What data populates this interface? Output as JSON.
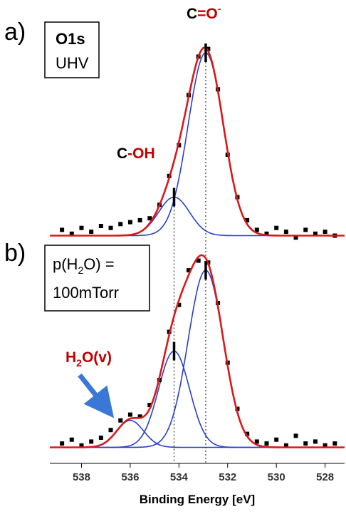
{
  "chart_data": [
    {
      "type": "scatter",
      "panel_label": "a)",
      "box_text": [
        [
          "O1s"
        ],
        [
          "UHV"
        ]
      ],
      "annotations": [
        {
          "parts": [
            "C",
            "=O"
          ],
          "sup": "-"
        },
        {
          "parts": [
            "C",
            "-OH"
          ]
        }
      ],
      "x": [
        538.8,
        538.4,
        538.0,
        537.6,
        537.2,
        536.8,
        536.4,
        536.0,
        535.6,
        535.2,
        534.8,
        534.4,
        534.0,
        533.6,
        533.2,
        532.8,
        532.4,
        532.0,
        531.6,
        531.2,
        530.8,
        530.4,
        530.0,
        529.6,
        529.2,
        528.8,
        528.4,
        528.0,
        527.6
      ],
      "values": [
        3,
        1,
        4,
        2,
        5,
        4,
        6,
        7,
        8,
        9,
        16,
        31,
        47,
        73,
        93,
        97,
        76,
        42,
        20,
        8,
        3,
        1,
        4,
        2,
        -1,
        3,
        1,
        2,
        0
      ],
      "components": [
        {
          "center": 532.9,
          "height": 95,
          "fwhm": 1.7
        },
        {
          "center": 534.2,
          "height": 20,
          "fwhm": 1.5
        }
      ],
      "marker_color": "#000000",
      "fit_color": "#d7191c",
      "component_color": "#2b3fc4",
      "xlim": [
        539.3,
        527.2
      ],
      "ylim": [
        -5,
        105
      ]
    },
    {
      "type": "scatter",
      "panel_label": "b)",
      "box_text": [
        [
          "p(H",
          "2",
          "O) ="
        ],
        [
          "100mTorr"
        ]
      ],
      "annotations": [
        {
          "parts": [
            "H",
            "2",
            "O(v)"
          ]
        }
      ],
      "x": [
        538.8,
        538.4,
        538.0,
        537.6,
        537.2,
        536.8,
        536.4,
        536.0,
        535.6,
        535.2,
        534.8,
        534.4,
        534.0,
        533.6,
        533.2,
        532.8,
        532.4,
        532.0,
        531.6,
        531.2,
        530.8,
        530.4,
        530.0,
        529.6,
        529.2,
        528.8,
        528.4,
        528.0,
        527.6
      ],
      "values": [
        2,
        4,
        1,
        3,
        5,
        9,
        14,
        17,
        16,
        22,
        35,
        60,
        74,
        92,
        97,
        96,
        75,
        44,
        20,
        7,
        3,
        2,
        4,
        1,
        6,
        2,
        3,
        1,
        2
      ],
      "components": [
        {
          "center": 532.9,
          "height": 92,
          "fwhm": 1.7
        },
        {
          "center": 534.2,
          "height": 50,
          "fwhm": 1.5
        },
        {
          "center": 536.0,
          "height": 14,
          "fwhm": 1.3
        }
      ],
      "marker_color": "#000000",
      "fit_color": "#d7191c",
      "component_color": "#2b3fc4",
      "xlim": [
        539.3,
        527.2
      ],
      "ylim": [
        -5,
        105
      ],
      "xticks": [
        538,
        536,
        534,
        532,
        530,
        528
      ],
      "xlabel": "Binding Energy [eV]"
    }
  ]
}
